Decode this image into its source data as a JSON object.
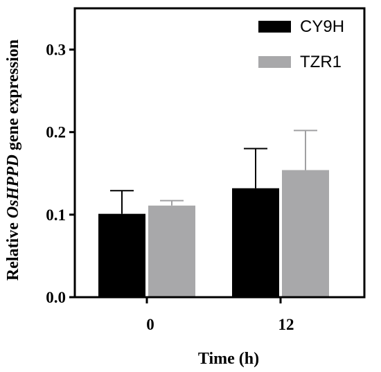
{
  "chart_data": {
    "type": "bar",
    "categories": [
      "0",
      "12"
    ],
    "series": [
      {
        "name": "CY9H",
        "color": "#000000",
        "errorColor": "#000000",
        "values": [
          0.101,
          0.132
        ],
        "errors": [
          0.028,
          0.048
        ]
      },
      {
        "name": "TZR1",
        "color": "#a8a8aa",
        "errorColor": "#a0a0a2",
        "values": [
          0.111,
          0.154
        ],
        "errors": [
          0.006,
          0.048
        ]
      }
    ],
    "xlabel": "Time (h)",
    "ylabel_prefix": "Relative ",
    "ylabel_gene": "OsHPPD",
    "ylabel_suffix": " gene expression",
    "ylim": [
      0,
      0.35
    ],
    "yticks": [
      "0.0",
      "0.1",
      "0.2",
      "0.3"
    ],
    "ytick_values": [
      0,
      0.1,
      0.2,
      0.3
    ],
    "grid": false,
    "legend_position": "top-right"
  }
}
